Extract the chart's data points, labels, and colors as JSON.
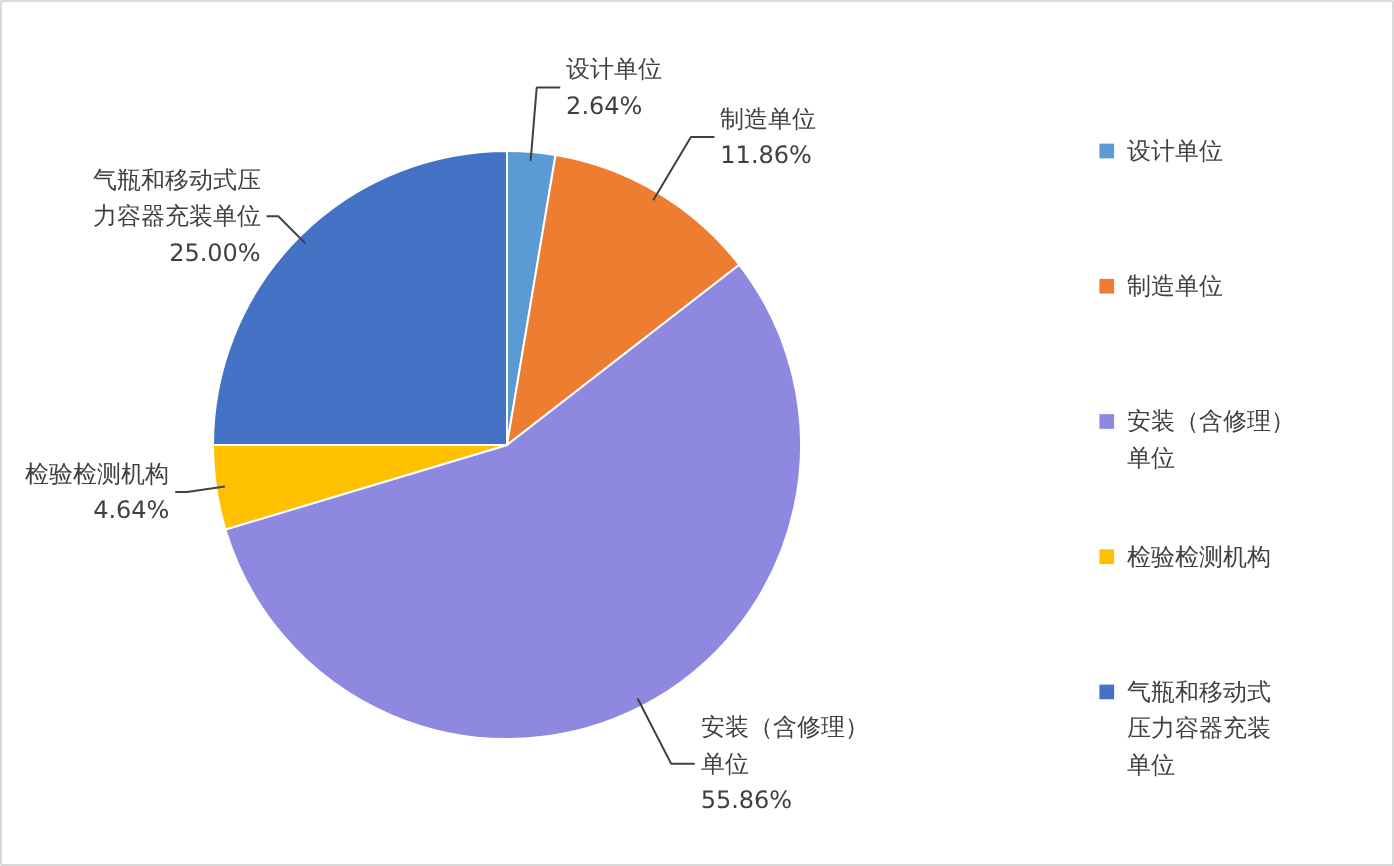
{
  "chart_data": {
    "type": "pie",
    "categories": [
      "设计单位",
      "制造单位",
      "安装（含修理）单位",
      "检验检测机构",
      "气瓶和移动式压力容器充装单位"
    ],
    "values": [
      2.64,
      11.86,
      55.86,
      4.64,
      25.0
    ],
    "value_labels": [
      "2.64%",
      "11.86%",
      "55.86%",
      "4.64%",
      "25.00%"
    ],
    "colors": [
      "#5b9bd5",
      "#ed7d31",
      "#8e88e0",
      "#ffc000",
      "#4472c4"
    ],
    "legend": "right"
  }
}
